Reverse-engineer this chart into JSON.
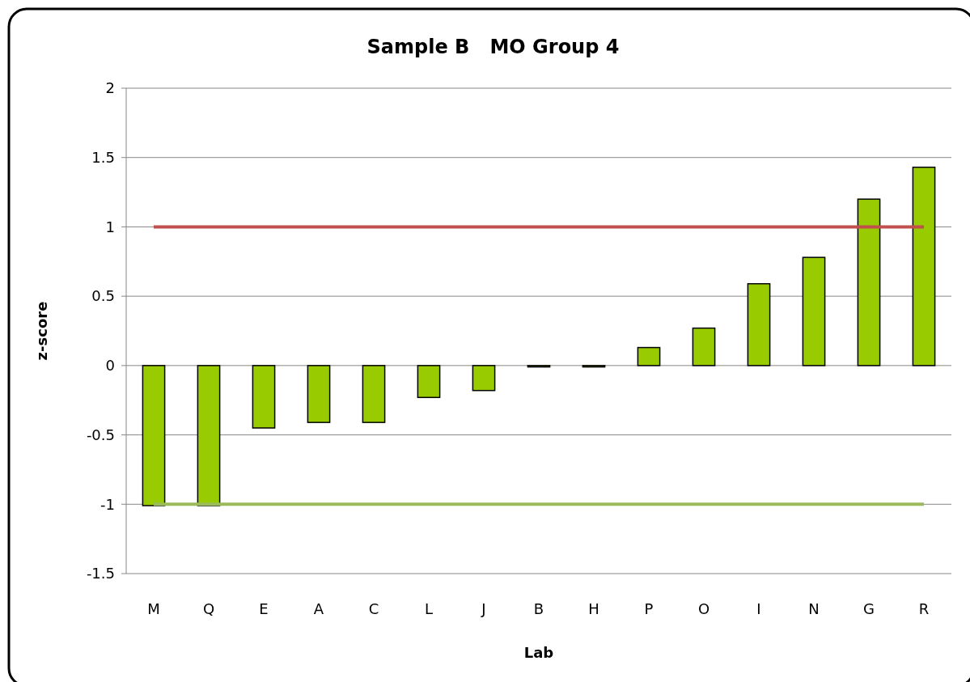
{
  "chart_data": {
    "type": "bar",
    "title": "Sample B   MO Group 4",
    "xlabel": "Lab",
    "ylabel": "z-score",
    "categories": [
      "M",
      "Q",
      "E",
      "A",
      "C",
      "L",
      "J",
      "B",
      "H",
      "P",
      "O",
      "I",
      "N",
      "G",
      "R"
    ],
    "series": [
      {
        "color": "#99cc00",
        "values": [
          -1.01,
          -1.01,
          -0.45,
          -0.41,
          -0.41,
          -0.23,
          -0.18,
          -0.01,
          -0.01,
          0.13,
          0.27,
          0.59,
          0.78,
          1.2,
          1.43
        ]
      },
      {
        "type": "line",
        "color": "#c0504d",
        "values": [
          1,
          1,
          1,
          1,
          1,
          1,
          1,
          1,
          1,
          1,
          1,
          1,
          1,
          1,
          1
        ]
      },
      {
        "type": "line",
        "color": "#9bbb59",
        "values": [
          -1,
          -1,
          -1,
          -1,
          -1,
          -1,
          -1,
          -1,
          -1,
          -1,
          -1,
          -1,
          -1,
          -1,
          -1
        ]
      }
    ],
    "ylim": [
      -1.5,
      2
    ],
    "yticks": [
      -1.5,
      -1,
      -0.5,
      0,
      0.5,
      1,
      1.5,
      2
    ],
    "grid": "y"
  }
}
